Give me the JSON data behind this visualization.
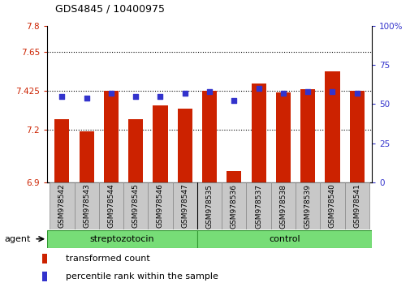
{
  "title": "GDS4845 / 10400975",
  "samples": [
    "GSM978542",
    "GSM978543",
    "GSM978544",
    "GSM978545",
    "GSM978546",
    "GSM978547",
    "GSM978535",
    "GSM978536",
    "GSM978537",
    "GSM978538",
    "GSM978539",
    "GSM978540",
    "GSM978541"
  ],
  "bar_values": [
    7.265,
    7.195,
    7.425,
    7.265,
    7.34,
    7.325,
    7.425,
    6.965,
    7.47,
    7.415,
    7.435,
    7.54,
    7.425
  ],
  "percentile_values": [
    55,
    54,
    57,
    55,
    55,
    57,
    58,
    52,
    60,
    57,
    58,
    58,
    57
  ],
  "ylim_left": [
    6.9,
    7.8
  ],
  "ylim_right": [
    0,
    100
  ],
  "yticks_left": [
    6.9,
    7.2,
    7.425,
    7.65,
    7.8
  ],
  "ytick_labels_left": [
    "6.9",
    "7.2",
    "7.425",
    "7.65",
    "7.8"
  ],
  "yticks_right": [
    0,
    25,
    50,
    75,
    100
  ],
  "ytick_labels_right": [
    "0",
    "25",
    "50",
    "75",
    "100%"
  ],
  "hlines": [
    7.65,
    7.425,
    7.2
  ],
  "bar_color": "#cc2200",
  "dot_color": "#3333cc",
  "group1_label": "streptozotocin",
  "group2_label": "control",
  "group1_count": 6,
  "group2_count": 7,
  "agent_label": "agent",
  "legend_bar_label": "transformed count",
  "legend_dot_label": "percentile rank within the sample",
  "bg_color": "#ffffff",
  "tick_bg_color": "#c8c8c8",
  "group_bar_color": "#77dd77",
  "group_bar_edge": "#339933"
}
